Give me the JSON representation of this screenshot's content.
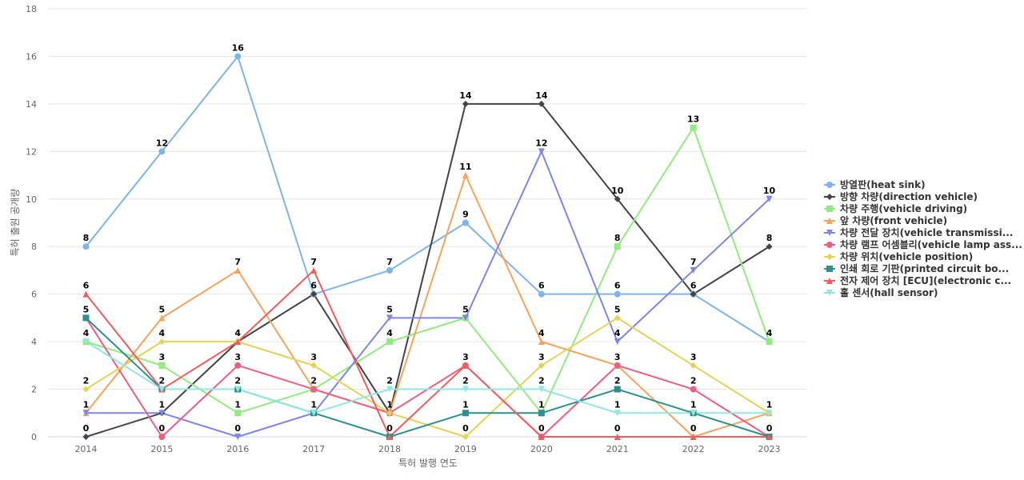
{
  "chart_data": {
    "type": "line",
    "xlabel": "특허 발행 연도",
    "ylabel": "특허 출원 공개량",
    "ylim": [
      0,
      18
    ],
    "yticks": [
      0,
      2,
      4,
      6,
      8,
      10,
      12,
      14,
      16,
      18
    ],
    "grid": true,
    "legend_position": "right",
    "categories": [
      "2014",
      "2015",
      "2016",
      "2017",
      "2018",
      "2019",
      "2020",
      "2021",
      "2022",
      "2023"
    ],
    "series": [
      {
        "name": "방열판(heat sink)",
        "color": "#7cb5ec",
        "marker": "circle",
        "values": [
          8,
          12,
          16,
          6,
          7,
          9,
          6,
          6,
          6,
          4
        ]
      },
      {
        "name": "방향 차량(direction vehicle)",
        "color": "#434348",
        "marker": "diamond",
        "values": [
          0,
          1,
          4,
          6,
          1,
          14,
          14,
          10,
          6,
          8
        ]
      },
      {
        "name": "차량 주행(vehicle driving)",
        "color": "#90ed7d",
        "marker": "square",
        "values": [
          4,
          3,
          1,
          2,
          4,
          5,
          1,
          8,
          13,
          4
        ]
      },
      {
        "name": "앞 차량(front vehicle)",
        "color": "#f7a35c",
        "marker": "triangle",
        "values": [
          1,
          5,
          7,
          2,
          1,
          11,
          4,
          3,
          0,
          1
        ]
      },
      {
        "name": "차량 전달 장치(vehicle transmissi...",
        "color": "#8085e9",
        "marker": "triangle-down",
        "values": [
          1,
          1,
          0,
          1,
          5,
          5,
          12,
          4,
          7,
          10
        ]
      },
      {
        "name": "차량 램프 어셈블리(vehicle lamp ass...",
        "color": "#f15c80",
        "marker": "circle",
        "values": [
          5,
          0,
          3,
          2,
          1,
          3,
          0,
          3,
          2,
          0
        ]
      },
      {
        "name": "차량 위치(vehicle position)",
        "color": "#e4d354",
        "marker": "diamond",
        "values": [
          2,
          4,
          4,
          3,
          1,
          0,
          3,
          5,
          3,
          1
        ]
      },
      {
        "name": "인쇄 회로 기판(printed circuit bo...",
        "color": "#2b908f",
        "marker": "square",
        "values": [
          5,
          2,
          2,
          1,
          0,
          1,
          1,
          2,
          1,
          0
        ]
      },
      {
        "name": "전자 제어 장치 [ECU](electronic c...",
        "color": "#f45b5b",
        "marker": "triangle",
        "values": [
          6,
          2,
          4,
          7,
          0,
          3,
          0,
          0,
          0,
          0
        ]
      },
      {
        "name": "홀 센서(hall sensor)",
        "color": "#91e8e1",
        "marker": "triangle-down",
        "values": [
          4,
          2,
          2,
          1,
          2,
          2,
          2,
          1,
          1,
          1
        ]
      }
    ],
    "data_labels": [
      {
        "x": "2014",
        "text": "8",
        "series_index": 0
      },
      {
        "x": "2014",
        "text": "6",
        "series_index": 8
      },
      {
        "x": "2014",
        "text": "5",
        "series_index": 5
      },
      {
        "x": "2014",
        "text": "4",
        "series_index": 2
      },
      {
        "x": "2014",
        "text": "2",
        "series_index": 6
      },
      {
        "x": "2014",
        "text": "1",
        "series_index": 4
      },
      {
        "x": "2014",
        "text": "0",
        "series_index": 1
      },
      {
        "x": "2015",
        "text": "12",
        "series_index": 0
      },
      {
        "x": "2015",
        "text": "5",
        "series_index": 3
      },
      {
        "x": "2015",
        "text": "4",
        "series_index": 6
      },
      {
        "x": "2015",
        "text": "3",
        "series_index": 2
      },
      {
        "x": "2015",
        "text": "2",
        "series_index": 7
      },
      {
        "x": "2015",
        "text": "1",
        "series_index": 4
      },
      {
        "x": "2015",
        "text": "0",
        "series_index": 5
      },
      {
        "x": "2016",
        "text": "16",
        "series_index": 0
      },
      {
        "x": "2016",
        "text": "7",
        "series_index": 3
      },
      {
        "x": "2016",
        "text": "4",
        "series_index": 1
      },
      {
        "x": "2016",
        "text": "3",
        "series_index": 5
      },
      {
        "x": "2016",
        "text": "2",
        "series_index": 7
      },
      {
        "x": "2016",
        "text": "1",
        "series_index": 2
      },
      {
        "x": "2016",
        "text": "0",
        "series_index": 4
      },
      {
        "x": "2017",
        "text": "7",
        "series_index": 8
      },
      {
        "x": "2017",
        "text": "6",
        "series_index": 1
      },
      {
        "x": "2017",
        "text": "3",
        "series_index": 6
      },
      {
        "x": "2017",
        "text": "2",
        "series_index": 5
      },
      {
        "x": "2017",
        "text": "1",
        "series_index": 7
      },
      {
        "x": "2018",
        "text": "7",
        "series_index": 0
      },
      {
        "x": "2018",
        "text": "5",
        "series_index": 4
      },
      {
        "x": "2018",
        "text": "4",
        "series_index": 2
      },
      {
        "x": "2018",
        "text": "2",
        "series_index": 9
      },
      {
        "x": "2018",
        "text": "1",
        "series_index": 1
      },
      {
        "x": "2018",
        "text": "0",
        "series_index": 7
      },
      {
        "x": "2019",
        "text": "14",
        "series_index": 1
      },
      {
        "x": "2019",
        "text": "11",
        "series_index": 3
      },
      {
        "x": "2019",
        "text": "9",
        "series_index": 0
      },
      {
        "x": "2019",
        "text": "5",
        "series_index": 4
      },
      {
        "x": "2019",
        "text": "3",
        "series_index": 5
      },
      {
        "x": "2019",
        "text": "2",
        "series_index": 9
      },
      {
        "x": "2019",
        "text": "1",
        "series_index": 7
      },
      {
        "x": "2019",
        "text": "0",
        "series_index": 6
      },
      {
        "x": "2020",
        "text": "14",
        "series_index": 1
      },
      {
        "x": "2020",
        "text": "12",
        "series_index": 4
      },
      {
        "x": "2020",
        "text": "6",
        "series_index": 0
      },
      {
        "x": "2020",
        "text": "4",
        "series_index": 3
      },
      {
        "x": "2020",
        "text": "3",
        "series_index": 6
      },
      {
        "x": "2020",
        "text": "2",
        "series_index": 9
      },
      {
        "x": "2020",
        "text": "1",
        "series_index": 2
      },
      {
        "x": "2020",
        "text": "0",
        "series_index": 5
      },
      {
        "x": "2021",
        "text": "10",
        "series_index": 1
      },
      {
        "x": "2021",
        "text": "8",
        "series_index": 2
      },
      {
        "x": "2021",
        "text": "6",
        "series_index": 0
      },
      {
        "x": "2021",
        "text": "5",
        "series_index": 6
      },
      {
        "x": "2021",
        "text": "4",
        "series_index": 4
      },
      {
        "x": "2021",
        "text": "3",
        "series_index": 5
      },
      {
        "x": "2021",
        "text": "2",
        "series_index": 7
      },
      {
        "x": "2021",
        "text": "1",
        "series_index": 9
      },
      {
        "x": "2021",
        "text": "0",
        "series_index": 8
      },
      {
        "x": "2022",
        "text": "13",
        "series_index": 2
      },
      {
        "x": "2022",
        "text": "7",
        "series_index": 4
      },
      {
        "x": "2022",
        "text": "6",
        "series_index": 1
      },
      {
        "x": "2022",
        "text": "3",
        "series_index": 6
      },
      {
        "x": "2022",
        "text": "2",
        "series_index": 5
      },
      {
        "x": "2022",
        "text": "1",
        "series_index": 7
      },
      {
        "x": "2022",
        "text": "0",
        "series_index": 3
      },
      {
        "x": "2023",
        "text": "10",
        "series_index": 4
      },
      {
        "x": "2023",
        "text": "8",
        "series_index": 1
      },
      {
        "x": "2023",
        "text": "4",
        "series_index": 0
      },
      {
        "x": "2023",
        "text": "1",
        "series_index": 9
      },
      {
        "x": "2023",
        "text": "0",
        "series_index": 5
      }
    ]
  }
}
